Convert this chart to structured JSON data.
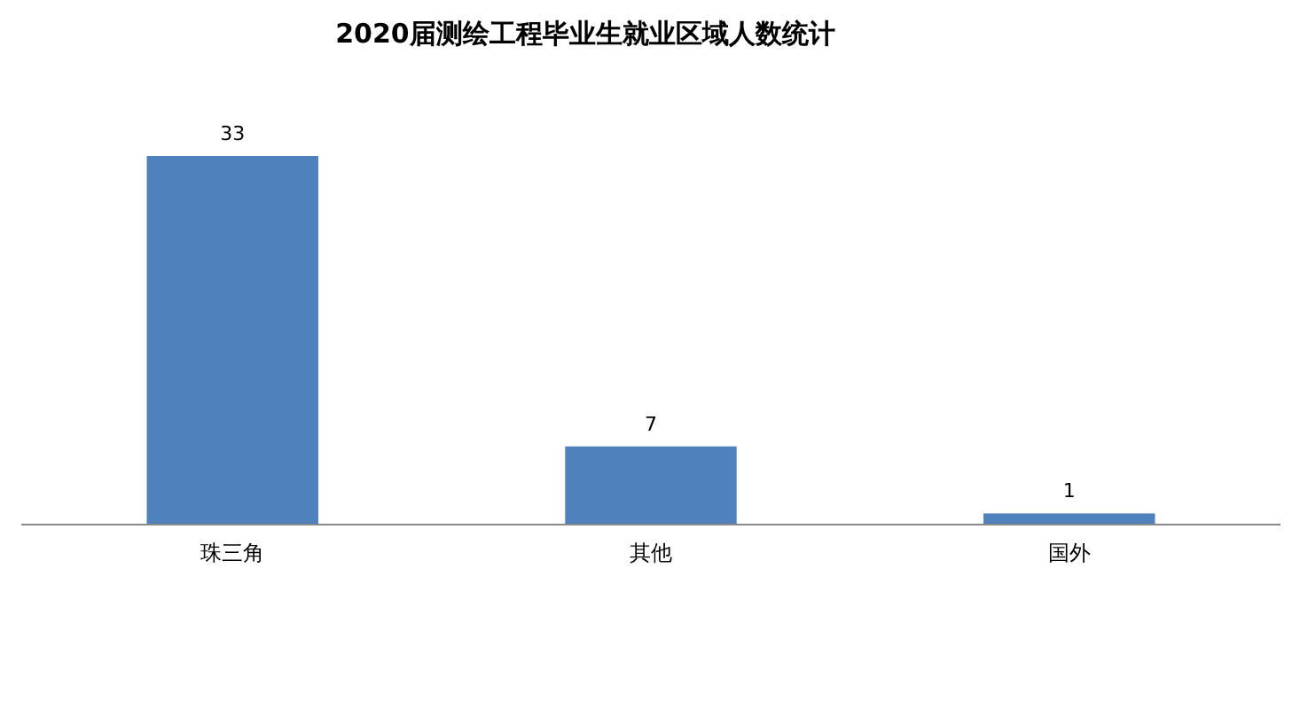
{
  "chart_data": {
    "type": "bar",
    "title": "2020届测绘工程毕业生就业区域人数统计",
    "categories": [
      "珠三角",
      "其他",
      "国外"
    ],
    "values": [
      33,
      7,
      1
    ],
    "color": "#4f81bd",
    "data_labels": true
  }
}
